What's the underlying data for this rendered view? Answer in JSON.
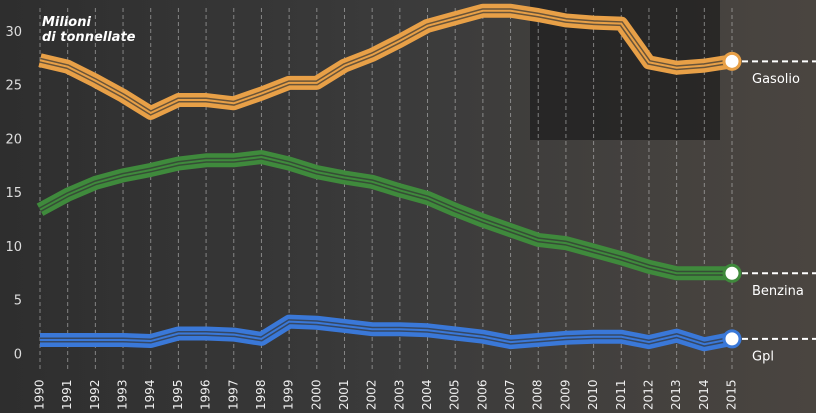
{
  "chart_data": {
    "type": "line",
    "annotation": "Milioni\ndi tonnellate",
    "categories": [
      "1990",
      "1991",
      "1992",
      "1993",
      "1994",
      "1995",
      "1996",
      "1997",
      "1998",
      "1999",
      "2000",
      "2001",
      "2002",
      "2003",
      "2004",
      "2005",
      "2006",
      "2007",
      "2008",
      "2009",
      "2010",
      "2011",
      "2012",
      "2013",
      "2014",
      "2015"
    ],
    "series": [
      {
        "name": "Gasolio",
        "color": "#e8a047",
        "values": [
          27.4,
          26.8,
          25.5,
          24.1,
          22.5,
          23.7,
          23.7,
          23.4,
          24.3,
          25.3,
          25.3,
          26.9,
          27.9,
          29.2,
          30.6,
          31.3,
          32,
          32,
          31.6,
          31.1,
          30.9,
          30.8,
          27.2,
          26.7,
          26.9,
          27.3
        ]
      },
      {
        "name": "Benzina",
        "color": "#3f8a3c",
        "values": [
          13.5,
          14.9,
          16,
          16.7,
          17.2,
          17.8,
          18.1,
          18.1,
          18.4,
          17.8,
          17,
          16.5,
          16.1,
          15.3,
          14.6,
          13.5,
          12.5,
          11.6,
          10.7,
          10.4,
          9.7,
          9,
          8.2,
          7.6,
          7.6,
          7.6
        ]
      },
      {
        "name": "Gpl",
        "color": "#3a78d8",
        "values": [
          1.4,
          1.4,
          1.4,
          1.4,
          1.3,
          2,
          2,
          1.9,
          1.5,
          3.1,
          3,
          2.7,
          2.4,
          2.4,
          2.3,
          2,
          1.7,
          1.2,
          1.4,
          1.6,
          1.7,
          1.7,
          1.2,
          1.8,
          1,
          1.5
        ]
      }
    ],
    "ylim": [
      -1.3,
      33
    ],
    "yticks": [
      0,
      5,
      10,
      15,
      20,
      25,
      30
    ],
    "grid": true
  }
}
